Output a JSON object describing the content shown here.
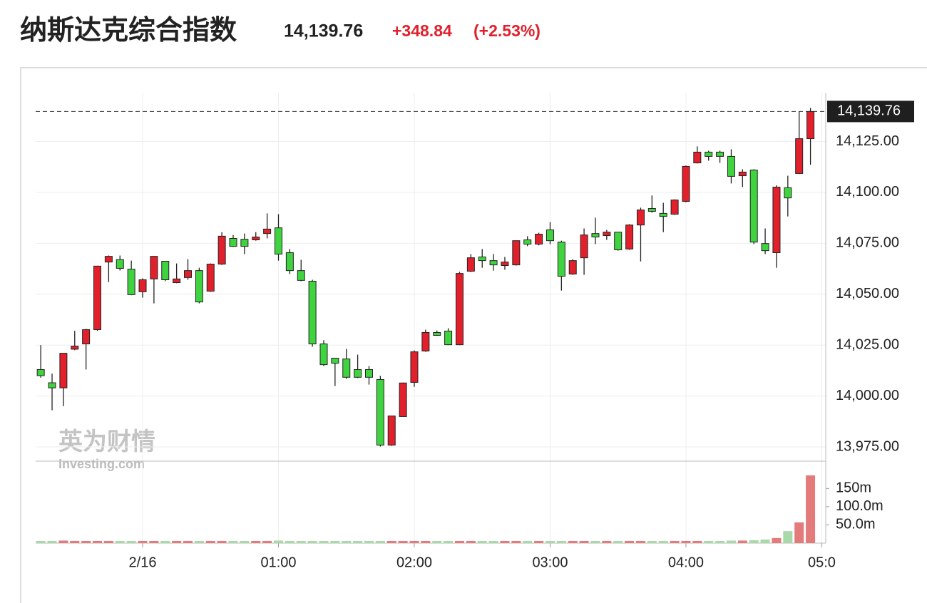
{
  "chart_data": {
    "type": "candlestick",
    "title": "纳斯达克综合指数",
    "last_price": 14139.76,
    "last_price_label": "14,139.76",
    "change": "+348.84",
    "change_pct": "(+2.53%)",
    "watermark": "英为财情",
    "watermark_sub": "Investing.com",
    "up_color": "#e2202c",
    "down_color": "#3fd43f",
    "volume_up_color": "#e47b7b",
    "volume_down_color": "#a9d9a9",
    "grid": true,
    "xlim": [
      -0.45,
      69.35
    ],
    "xticks": [
      {
        "value": 9,
        "label": "2/16"
      },
      {
        "value": 21,
        "label": "01:00"
      },
      {
        "value": 33,
        "label": "02:00"
      },
      {
        "value": 45,
        "label": "03:00"
      },
      {
        "value": 57,
        "label": "04:00"
      },
      {
        "value": 69,
        "label": "05:0"
      }
    ],
    "ylim": [
      13968,
      14149
    ],
    "yticks": [
      {
        "value": 13975,
        "label": "13,975.00"
      },
      {
        "value": 14000,
        "label": "14,000.00"
      },
      {
        "value": 14025,
        "label": "14,025.00"
      },
      {
        "value": 14050,
        "label": "14,050.00"
      },
      {
        "value": 14075,
        "label": "14,075.00"
      },
      {
        "value": 14100,
        "label": "14,100.00"
      },
      {
        "value": 14125,
        "label": "14,125.00"
      }
    ],
    "open": [
      14013,
      14006.5,
      14004,
      14023,
      14025.6,
      14032.6,
      14065.8,
      14067,
      14062.3,
      14051.2,
      14057.5,
      14066.2,
      14055.7,
      14058.2,
      14061.6,
      14051.5,
      14064.8,
      14077.4,
      14077,
      14076.7,
      14079.8,
      14082.6,
      14070.4,
      14061.6,
      14056.4,
      14025.6,
      14018.6,
      14018.2,
      14013,
      14013,
      14008.1,
      13975.9,
      13989.9,
      14006.7,
      14022.1,
      14031.2,
      14031.9,
      14025.2,
      14061.3,
      14068.3,
      14066.5,
      14064.1,
      14064.4,
      14076.7,
      14074.6,
      14081.6,
      14075.6,
      14059.9,
      14067.9,
      14079.8,
      14078.8,
      14080.5,
      14072.2,
      14084,
      14092.1,
      14089.7,
      14089.3,
      14095.6,
      14114.5,
      14119.8,
      14119.8,
      14117.7,
      14108.2,
      14111,
      14074.9,
      14070.4,
      14102.3,
      14109.3,
      14126.4
    ],
    "high": [
      14025,
      14011,
      14021,
      14032,
      14033,
      14064,
      14069,
      14069,
      14066.5,
      14057.8,
      14068.6,
      14066.2,
      14065.1,
      14067.2,
      14063,
      14065.1,
      14080.5,
      14079.1,
      14079.8,
      14080.5,
      14089.7,
      14089.3,
      14072.2,
      14066.9,
      14057.1,
      14027.4,
      14018.6,
      14023.1,
      14020.3,
      14014.7,
      14009.9,
      13990.2,
      14006.6,
      14022.4,
      14032.6,
      14032.2,
      14033.3,
      14061,
      14069.7,
      14072.2,
      14069.7,
      14068.3,
      14076.3,
      14078.5,
      14080.2,
      14085.4,
      14076.3,
      14067.2,
      14082.3,
      14087.6,
      14081.6,
      14080.5,
      14084.4,
      14092.5,
      14098.5,
      14094.9,
      14096.6,
      14113.2,
      14122.6,
      14120.5,
      14120.5,
      14121.2,
      14111.4,
      14111.4,
      14082.3,
      14103.5,
      14108.2,
      14139.7,
      14141.5
    ],
    "low": [
      14009,
      13993,
      13995,
      14022.5,
      14013,
      14032,
      14056,
      14061.6,
      14049.5,
      14048.3,
      14045.5,
      14056.4,
      14055.4,
      14057.1,
      14045.5,
      14051.2,
      14064.4,
      14073.2,
      14069.7,
      14076.3,
      14077.4,
      14066.5,
      14059.9,
      14056.4,
      14024.2,
      14014.7,
      14004.9,
      14008.4,
      14008.8,
      14005.6,
      13975.2,
      13975.5,
      13989.9,
      14004.5,
      14021.7,
      14029.5,
      14025,
      14025,
      14060.9,
      14063,
      14061.6,
      14062,
      14064.1,
      14073.6,
      14074,
      14074.6,
      14051.8,
      14059.5,
      14059.5,
      14074.6,
      14076.7,
      14071.4,
      14071.8,
      14066.1,
      14090,
      14080.5,
      14089,
      14095.2,
      14114.2,
      14115.6,
      14114.5,
      14104.4,
      14102.7,
      14074.6,
      14069.7,
      14063,
      14088.2,
      14109,
      14113.6
    ],
    "close": [
      14010,
      14004,
      14021,
      14024.5,
      14032.6,
      14063.8,
      14068.6,
      14062.7,
      14049.8,
      14057.1,
      14068.6,
      14057.1,
      14057.5,
      14061.6,
      14046.2,
      14064.8,
      14078.5,
      14073.5,
      14073.5,
      14078.1,
      14082,
      14069.7,
      14061.6,
      14056.8,
      14025.6,
      14015.4,
      14016.1,
      14009.2,
      14009.2,
      14009.2,
      13975.9,
      13990.2,
      14006.4,
      14021.7,
      14031.2,
      14029.8,
      14025.2,
      14060.2,
      14067.9,
      14066.5,
      14064.4,
      14065.8,
      14076.3,
      14074.6,
      14079.5,
      14076.3,
      14058.8,
      14066.5,
      14079.1,
      14078.1,
      14080.5,
      14071.8,
      14084,
      14091.4,
      14090.7,
      14088.2,
      14096.3,
      14112.8,
      14119.8,
      14117.7,
      14117.7,
      14107.9,
      14110,
      14075.6,
      14071.4,
      14102.6,
      14097.3,
      14126.4,
      14139.76
    ],
    "volume": {
      "ylim": [
        0,
        225
      ],
      "yticks": [
        {
          "value": 50,
          "label": "50.0m"
        },
        {
          "value": 100,
          "label": "100.0m"
        },
        {
          "value": 150,
          "label": "150m"
        }
      ],
      "values": [
        6,
        6,
        7,
        6,
        6,
        6,
        6,
        6,
        6,
        6,
        6,
        6,
        6,
        6,
        6,
        6,
        6,
        6,
        6,
        6,
        6,
        7,
        6,
        6,
        6,
        6,
        6,
        6,
        6,
        6,
        6,
        6,
        6,
        6,
        6,
        6,
        6,
        6,
        6,
        6,
        6,
        6,
        6,
        6,
        6,
        6,
        6,
        6,
        6,
        6,
        6,
        6,
        6,
        6,
        6,
        6,
        6,
        6,
        6,
        6,
        6,
        7,
        7,
        8,
        10,
        14,
        33,
        57,
        186
      ]
    }
  }
}
